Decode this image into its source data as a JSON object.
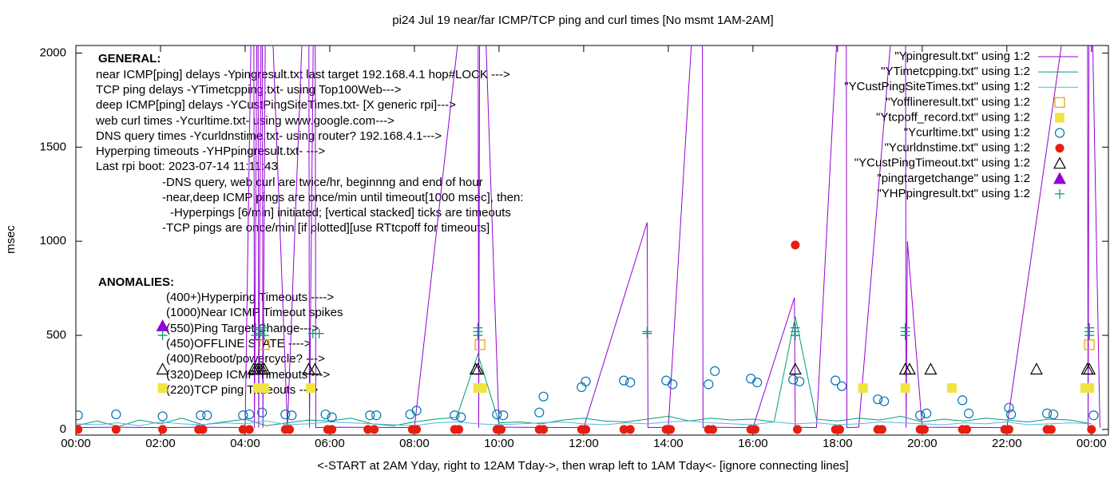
{
  "chart_data": {
    "type": "line",
    "title": "pi24 Jul 19  near/far ICMP/TCP ping and curl times [No msmt 1AM-2AM]",
    "xlabel": "<-START at 2AM Yday, right to 12AM Tday->, then wrap left to 1AM Tday<- [ignore connecting lines]",
    "ylabel": "msec",
    "xlim": [
      0,
      24.4
    ],
    "ylim": [
      -30,
      2040
    ],
    "xticks": [
      {
        "value": 0,
        "label": "00:00"
      },
      {
        "value": 2,
        "label": "02:00"
      },
      {
        "value": 4,
        "label": "04:00"
      },
      {
        "value": 6,
        "label": "06:00"
      },
      {
        "value": 8,
        "label": "08:00"
      },
      {
        "value": 10,
        "label": "10:00"
      },
      {
        "value": 12,
        "label": "12:00"
      },
      {
        "value": 14,
        "label": "14:00"
      },
      {
        "value": 16,
        "label": "16:00"
      },
      {
        "value": 18,
        "label": "18:00"
      },
      {
        "value": 20,
        "label": "20:00"
      },
      {
        "value": 22,
        "label": "22:00"
      },
      {
        "value": 24,
        "label": "00:00"
      }
    ],
    "yticks": [
      0,
      500,
      1000,
      1500,
      2000
    ],
    "legend": "top-right",
    "annotations": [
      "GENERAL:",
      "near ICMP[ping] delays -Ypingresult.txt last target 192.168.4.1 hop#LOCK --->",
      "TCP ping delays -YTimetcpping.txt- using Top100Web--->",
      "deep ICMP[ping] delays -YCustPingSiteTimes.txt- [X generic rpi]--->",
      "web curl times -Ycurltime.txt- using www.google.com--->",
      "DNS query times -Ycurldnstime.txt- using router? 192.168.4.1--->",
      "Hyperping timeouts -YHPpingresult.txt- --->",
      "Last rpi boot: 2023-07-14 11:11:43",
      "-DNS query, web curl are twice/hr, beginnng and end of hour",
      "-near,deep ICMP pings are once/min until timeout[1000 msec], then:",
      "-Hyperpings [6/min] initiated; [vertical stacked] ticks are timeouts",
      "-TCP pings are once/min [if plotted][use RTtcpoff for timeouts]",
      "ANOMALIES:",
      "(400+)Hyperping Timeouts ---->",
      "(1000)Near ICMP Timeout spikes",
      "(550)Ping Target Change--->",
      "(450)OFFLINE STATE ---->",
      "(400)Reboot/powercycle? --->",
      "(320)Deep ICMP Timeouts --->",
      "(220)TCP ping Timeouts --->"
    ],
    "series": [
      {
        "name": "\"Ypingresult.txt\" using 1:2",
        "color": "#9400d3",
        "style": "line",
        "x": [
          0,
          1,
          2,
          3,
          4,
          4.2,
          4.22,
          4.3,
          4.32,
          4.4,
          4.42,
          4.5,
          5,
          5.5,
          5.52,
          5.65,
          5.67,
          6,
          8,
          9.5,
          9.52,
          9.55,
          10,
          12,
          13.5,
          13.52,
          14,
          14.8,
          14.82,
          15,
          16,
          16.98,
          17.0,
          17.05,
          17.5,
          18.2,
          18.22,
          18.5,
          19.6,
          19.62,
          19.65,
          20,
          22,
          23.9,
          23.92,
          23.95,
          24.2
        ],
        "values": [
          10,
          12,
          10,
          12,
          10,
          3000,
          10,
          3000,
          10,
          3000,
          10,
          3000,
          12,
          3000,
          10,
          3000,
          10,
          12,
          10,
          3000,
          10,
          3000,
          12,
          10,
          1100,
          10,
          12,
          3000,
          10,
          12,
          10,
          700,
          10,
          12,
          10,
          3000,
          10,
          12,
          3000,
          10,
          1000,
          12,
          10,
          3000,
          10,
          3000,
          10
        ]
      },
      {
        "name": "\"YTimetcpping.txt\" using 1:2",
        "color": "#009e73",
        "style": "line",
        "x": [
          0,
          0.5,
          1,
          1.5,
          2,
          2.5,
          3,
          3.5,
          4,
          4.5,
          5,
          5.5,
          6,
          6.5,
          7,
          7.5,
          8,
          8.5,
          9,
          9.5,
          10,
          10.5,
          11,
          11.5,
          12,
          12.5,
          13,
          13.5,
          14,
          14.5,
          15,
          15.5,
          16,
          16.5,
          17,
          17.5,
          18,
          18.5,
          19,
          19.5,
          20,
          20.5,
          21,
          21.5,
          22,
          22.5,
          23,
          23.5,
          24
        ],
        "values": [
          20,
          45,
          15,
          50,
          30,
          60,
          25,
          40,
          55,
          20,
          35,
          50,
          45,
          60,
          30,
          20,
          40,
          55,
          65,
          400,
          35,
          40,
          30,
          50,
          60,
          45,
          40,
          55,
          70,
          45,
          60,
          50,
          55,
          40,
          600,
          55,
          45,
          60,
          50,
          70,
          40,
          55,
          45,
          60,
          50,
          40,
          55,
          50,
          30
        ]
      },
      {
        "name": "\"YCustPingSiteTimes.txt\" using 1:2",
        "color": "#56b4e9",
        "style": "line",
        "x": [
          0,
          0.5,
          1,
          1.5,
          2,
          2.5,
          3,
          3.5,
          4,
          4.5,
          5,
          5.5,
          6,
          6.5,
          7,
          7.5,
          8,
          8.5,
          9,
          9.5,
          10,
          10.5,
          11,
          11.5,
          12,
          12.5,
          13,
          13.5,
          14,
          14.5,
          15,
          15.5,
          16,
          16.5,
          17,
          17.5,
          18,
          18.5,
          19,
          19.5,
          20,
          20.5,
          21,
          21.5,
          22,
          22.5,
          23,
          23.5,
          24
        ],
        "values": [
          30,
          25,
          35,
          20,
          40,
          30,
          25,
          35,
          30,
          45,
          25,
          30,
          40,
          35,
          30,
          25,
          20,
          35,
          40,
          30,
          25,
          30,
          35,
          40,
          30,
          25,
          35,
          30,
          40,
          45,
          35,
          30,
          25,
          40,
          30,
          35,
          25,
          30,
          40,
          35,
          30,
          25,
          35,
          30,
          40,
          25,
          30,
          35,
          30
        ]
      },
      {
        "name": "\"Yofflineresult.txt\" using 1:2",
        "color": "#e69f00",
        "style": "points",
        "marker": "open-square",
        "x": [
          4.45,
          9.55,
          23.95
        ],
        "values": [
          450,
          450,
          450
        ]
      },
      {
        "name": "\"Ytcpoff_record.txt\" using 1:2",
        "color": "#f0e442",
        "style": "points",
        "marker": "filled-square",
        "x": [
          2.05,
          4.3,
          4.45,
          5.55,
          9.5,
          9.6,
          18.6,
          19.6,
          20.7,
          23.85,
          23.95
        ],
        "values": [
          220,
          220,
          220,
          220,
          220,
          220,
          220,
          220,
          220,
          220,
          220
        ]
      },
      {
        "name": "\"Ycurltime.txt\" using 1:2",
        "color": "#0072b2",
        "style": "points",
        "marker": "open-circle",
        "x": [
          0.05,
          0.95,
          2.05,
          2.95,
          3.1,
          3.95,
          4.1,
          4.4,
          4.95,
          5.1,
          5.9,
          6.05,
          6.95,
          7.1,
          7.9,
          8.05,
          8.95,
          9.1,
          9.95,
          10.1,
          10.95,
          11.05,
          11.95,
          12.05,
          12.95,
          13.1,
          13.95,
          14.1,
          14.95,
          15.1,
          15.95,
          16.1,
          16.95,
          17.1,
          17.95,
          18.1,
          18.95,
          19.1,
          19.95,
          20.1,
          20.95,
          21.1,
          22.05,
          22.1,
          22.95,
          23.1,
          24.05
        ],
        "values": [
          75,
          80,
          70,
          75,
          75,
          75,
          80,
          90,
          80,
          75,
          80,
          65,
          75,
          75,
          80,
          100,
          75,
          65,
          80,
          75,
          90,
          175,
          225,
          255,
          260,
          250,
          260,
          240,
          240,
          310,
          270,
          250,
          265,
          255,
          260,
          230,
          160,
          150,
          75,
          85,
          155,
          85,
          115,
          80,
          85,
          80,
          75
        ]
      },
      {
        "name": "\"Ycurldnstime.txt\" using 1:2",
        "color": "#e51e10",
        "style": "points",
        "marker": "filled-circle",
        "x": [
          0.05,
          0.95,
          2.05,
          2.9,
          3.0,
          3.95,
          4.1,
          4.95,
          5.05,
          5.95,
          6.05,
          6.9,
          7.05,
          7.95,
          8.05,
          8.95,
          9.05,
          9.95,
          10.05,
          10.95,
          11.05,
          11.95,
          12.05,
          12.95,
          13.1,
          13.95,
          14.05,
          14.95,
          15.05,
          15.95,
          16.05,
          17.0,
          17.05,
          17.95,
          18.05,
          18.95,
          19.05,
          19.95,
          20.05,
          20.95,
          21.05,
          21.95,
          22.05,
          22.95,
          23.05,
          24.0
        ],
        "values": [
          0,
          0,
          0,
          0,
          0,
          0,
          0,
          0,
          0,
          0,
          0,
          0,
          0,
          0,
          0,
          0,
          0,
          0,
          0,
          0,
          0,
          0,
          0,
          0,
          0,
          0,
          0,
          0,
          0,
          0,
          0,
          980,
          0,
          0,
          0,
          0,
          0,
          0,
          0,
          0,
          0,
          0,
          0,
          0,
          0,
          0
        ]
      },
      {
        "name": "\"YCustPingTimeout.txt\" using 1:2",
        "color": "#000000",
        "style": "points",
        "marker": "open-triangle",
        "x": [
          2.05,
          4.2,
          4.25,
          4.3,
          4.35,
          4.4,
          4.45,
          5.5,
          5.65,
          9.45,
          9.5,
          17.0,
          19.6,
          19.7,
          20.2,
          22.7,
          23.9,
          23.95
        ],
        "values": [
          320,
          320,
          320,
          320,
          320,
          320,
          320,
          320,
          320,
          320,
          320,
          320,
          320,
          320,
          320,
          320,
          320,
          320
        ]
      },
      {
        "name": "\"pingtargetchange\" using 1:2",
        "color": "#9400d3",
        "style": "points",
        "marker": "filled-triangle",
        "x": [
          2.05
        ],
        "values": [
          550
        ]
      },
      {
        "name": "\"YHPpingresult.txt\" using 1:2",
        "color": "#009e73",
        "style": "points",
        "marker": "plus",
        "x": [
          2.05,
          4.25,
          4.25,
          4.35,
          4.35,
          4.45,
          4.45,
          5.6,
          5.75,
          9.5,
          9.5,
          9.5,
          13.5,
          13.5,
          17.0,
          17.0,
          17.0,
          19.6,
          19.6,
          19.6,
          23.95,
          23.95,
          23.95
        ],
        "values": [
          500,
          500,
          540,
          510,
          530,
          500,
          540,
          510,
          510,
          500,
          520,
          540,
          510,
          520,
          500,
          520,
          540,
          500,
          520,
          540,
          500,
          520,
          540
        ]
      }
    ]
  }
}
